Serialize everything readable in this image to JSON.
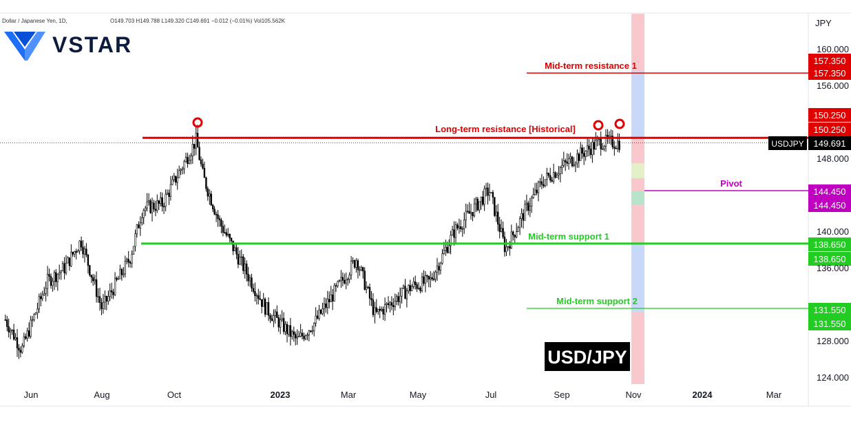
{
  "header": {
    "symbol_desc": "Dollar / Japanese Yen, 1D,",
    "ohlc": "O149.703 H149.788 L149.320 C149.691 −0.012 (−0.01%) Vol105.562K"
  },
  "brand": {
    "name": "VSTAR"
  },
  "watermark": "USD/JPY",
  "currency": "JPY",
  "colors": {
    "resistance": "#e00000",
    "support": "#22cc22",
    "pivot": "#c000c0",
    "candle": "#000000",
    "band_pink": "#f8c8cc",
    "band_blue": "#c8d8f8"
  },
  "chart_data": {
    "type": "candlestick",
    "ylim": [
      122.5,
      162
    ],
    "y_ticks": [
      "160.000",
      "156.000",
      "148.000",
      "140.000",
      "136.000",
      "128.000",
      "124.000"
    ],
    "x_ticks": [
      "Jun",
      "Aug",
      "Oct",
      "2023",
      "Mar",
      "May",
      "Jul",
      "Sep",
      "Nov",
      "2024",
      "Mar"
    ],
    "last_price": {
      "label": "USDJPY",
      "value": "149.691",
      "y": 149.691
    },
    "levels": [
      {
        "name": "Mid-term resistance 1",
        "y": 157.35,
        "badges": [
          "157.350",
          "157.350"
        ],
        "role": "resistance"
      },
      {
        "name": "Long-term resistance [Historical]",
        "y": 150.25,
        "badges": [
          "150.250",
          "150.250"
        ],
        "role": "resistance"
      },
      {
        "name": "Pivot",
        "y": 144.45,
        "badges": [
          "144.450",
          "144.450"
        ],
        "role": "pivot"
      },
      {
        "name": "Mid-term support 1",
        "y": 138.65,
        "badges": [
          "138.650",
          "138.650"
        ],
        "role": "support"
      },
      {
        "name": "Mid-term support 2",
        "y": 131.55,
        "badges": [
          "131.550",
          "131.550"
        ],
        "role": "support"
      }
    ],
    "approx_closes": [
      {
        "date": "2022-05-10",
        "close": 130.3
      },
      {
        "date": "2022-05-24",
        "close": 127.0
      },
      {
        "date": "2022-06-15",
        "close": 134.5
      },
      {
        "date": "2022-06-30",
        "close": 136.0
      },
      {
        "date": "2022-07-14",
        "close": 139.0
      },
      {
        "date": "2022-08-01",
        "close": 131.5
      },
      {
        "date": "2022-08-25",
        "close": 137.0
      },
      {
        "date": "2022-09-05",
        "close": 142.5
      },
      {
        "date": "2022-09-22",
        "close": 143.0
      },
      {
        "date": "2022-10-21",
        "close": 150.0
      },
      {
        "date": "2022-10-27",
        "close": 146.0
      },
      {
        "date": "2022-11-10",
        "close": 141.0
      },
      {
        "date": "2022-12-01",
        "close": 136.0
      },
      {
        "date": "2022-12-20",
        "close": 131.5
      },
      {
        "date": "2023-01-16",
        "close": 128.0
      },
      {
        "date": "2023-01-31",
        "close": 130.0
      },
      {
        "date": "2023-03-08",
        "close": 137.0
      },
      {
        "date": "2023-03-24",
        "close": 130.8
      },
      {
        "date": "2023-04-25",
        "close": 134.0
      },
      {
        "date": "2023-05-10",
        "close": 134.5
      },
      {
        "date": "2023-05-31",
        "close": 140.0
      },
      {
        "date": "2023-06-30",
        "close": 144.5
      },
      {
        "date": "2023-07-14",
        "close": 138.0
      },
      {
        "date": "2023-08-01",
        "close": 142.5
      },
      {
        "date": "2023-08-15",
        "close": 145.5
      },
      {
        "date": "2023-09-05",
        "close": 147.5
      },
      {
        "date": "2023-10-03",
        "close": 149.8
      },
      {
        "date": "2023-10-20",
        "close": 149.7
      }
    ]
  }
}
